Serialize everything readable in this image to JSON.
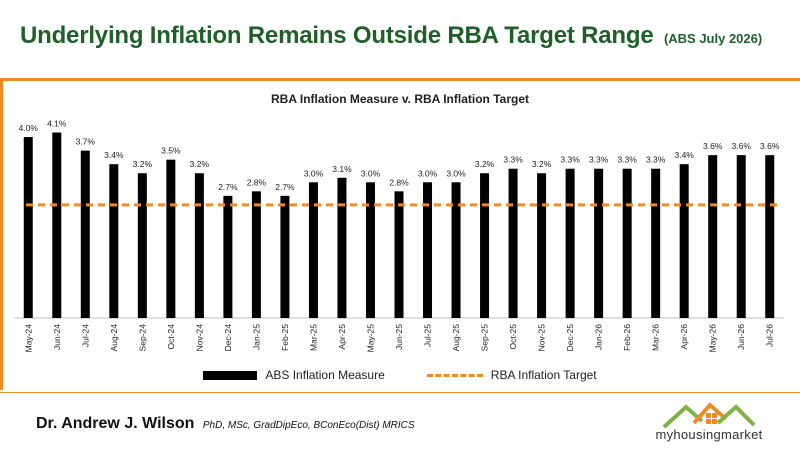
{
  "header": {
    "title": "Underlying Inflation Remains Outside RBA Target Range",
    "subtitle": "(ABS July 2026)"
  },
  "chart_data": {
    "type": "bar",
    "title": "RBA Inflation Measure v. RBA Inflation Target",
    "categories": [
      "May-24",
      "Jun-24",
      "Jul-24",
      "Aug-24",
      "Sep-24",
      "Oct-24",
      "Nov-24",
      "Dec-24",
      "Jan-25",
      "Feb-25",
      "Mar-25",
      "Apr-25",
      "May-25",
      "Jun-25",
      "Jul-25",
      "Aug-25",
      "Sep-25",
      "Oct-25",
      "Nov-25",
      "Dec-25",
      "Jan-26",
      "Feb-26",
      "Mar-26",
      "Apr-26",
      "May-26",
      "Jun-26",
      "Jul-26"
    ],
    "series": [
      {
        "name": "ABS Inflation Measure",
        "kind": "bar",
        "color": "#000000",
        "values": [
          4.0,
          4.1,
          3.7,
          3.4,
          3.2,
          3.5,
          3.2,
          2.7,
          2.8,
          2.7,
          3.0,
          3.1,
          3.0,
          2.8,
          3.0,
          3.0,
          3.2,
          3.3,
          3.2,
          3.3,
          3.3,
          3.3,
          3.3,
          3.4,
          3.6,
          3.6,
          3.6
        ],
        "labels": [
          "4.0%",
          "4.1%",
          "3.7%",
          "3.4%",
          "3.2%",
          "3.5%",
          "3.2%",
          "2.7%",
          "2.8%",
          "2.7%",
          "3.0%",
          "3.1%",
          "3.0%",
          "2.8%",
          "3.0%",
          "3.0%",
          "3.2%",
          "3.3%",
          "3.2%",
          "3.3%",
          "3.3%",
          "3.3%",
          "3.3%",
          "3.4%",
          "3.6%",
          "3.6%",
          "3.6%"
        ]
      },
      {
        "name": "RBA Inflation Target",
        "kind": "dashed-line",
        "color": "#f08a24",
        "value": 2.5
      }
    ],
    "ylim": [
      0,
      4.2
    ],
    "grid": false,
    "legend_placement": "bottom",
    "xlabel": "",
    "ylabel": ""
  },
  "footer": {
    "author": "Dr. Andrew J. Wilson",
    "credentials": "PhD, MSc, GradDipEco, BConEco(Dist) MRICS",
    "logo_text": "myhousingmarket"
  }
}
